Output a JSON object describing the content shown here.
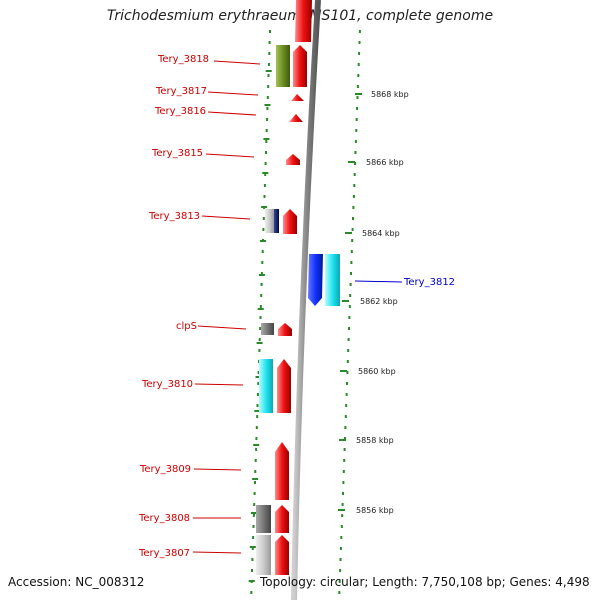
{
  "title": "Trichodesmium erythraeum IMS101, complete genome",
  "footer": {
    "accession": "Accession: NC_008312",
    "summary": "Topology: circular; Length: 7,750,108 bp; Genes: 4,498"
  },
  "ticks": [
    "5868 kbp",
    "5866 kbp",
    "5864 kbp",
    "5862 kbp",
    "5860 kbp",
    "5858 kbp",
    "5856 kbp"
  ],
  "genes": [
    {
      "name": "Tery_3818"
    },
    {
      "name": "Tery_3817"
    },
    {
      "name": "Tery_3816"
    },
    {
      "name": "Tery_3815"
    },
    {
      "name": "Tery_3813"
    },
    {
      "name": "Tery_3812"
    },
    {
      "name": "clpS"
    },
    {
      "name": "Tery_3810"
    },
    {
      "name": "Tery_3809"
    },
    {
      "name": "Tery_3808"
    },
    {
      "name": "Tery_3807"
    }
  ],
  "colors": {
    "forward_gene": "#ee1111",
    "reverse_gene": "#1133ff",
    "cyan_gene": "#22e5f0",
    "olive_gene": "#6b8e23",
    "gray_gene": "#777777",
    "light_gray_gene": "#cccccc",
    "navy_gene": "#001a66",
    "backbone": "#9a9a9a",
    "tick": "#2a8a2a",
    "label_red": "#cc0000",
    "label_blue": "#0000cc"
  }
}
